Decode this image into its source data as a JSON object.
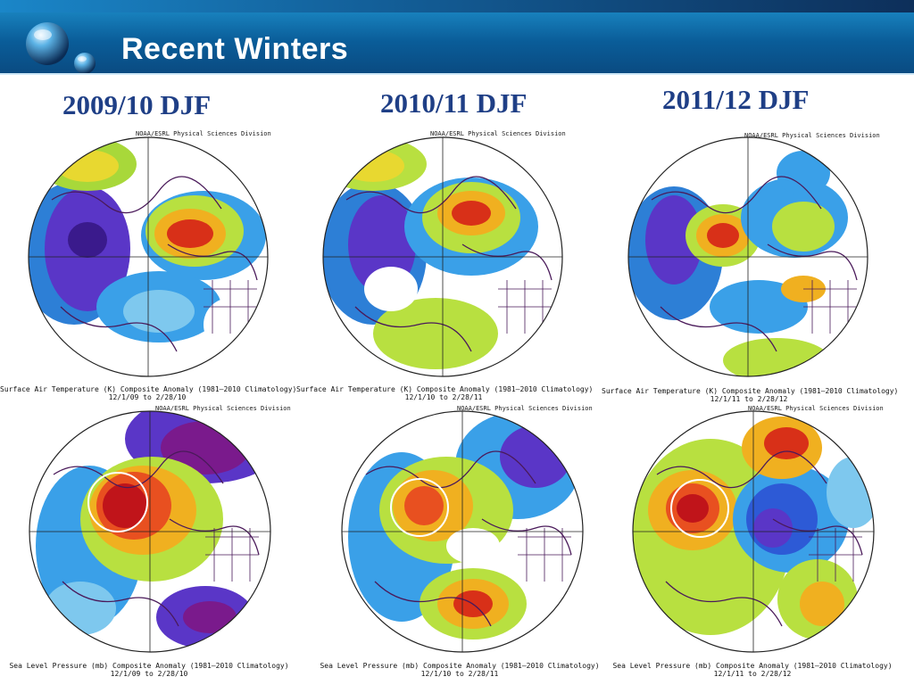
{
  "slide": {
    "title": "Recent Winters",
    "colors": {
      "title_text": "#ffffff",
      "header_blue": "#0a5d99",
      "column_title": "#1f3f86"
    }
  },
  "columns": [
    {
      "title": "2009/10 DJF"
    },
    {
      "title": "2010/11 DJF"
    },
    {
      "title": "2011/12 DJF"
    }
  ],
  "credit": "NOAA/ESRL Physical Sciences Division",
  "maps": {
    "temperature": [
      {
        "caption": "Surface Air Temperature (K) Composite Anomaly (1981–2010 Climatology)",
        "dates": "12/1/09  to 2/28/10"
      },
      {
        "caption": "Surface Air Temperature (K) Composite Anomaly (1981–2010 Climatology)",
        "dates": "12/1/10  to 2/28/11"
      },
      {
        "caption": "Surface Air Temperature (K) Composite Anomaly (1981–2010 Climatology)",
        "dates": "12/1/11  to 2/28/12"
      }
    ],
    "pressure": [
      {
        "caption": "Sea Level Pressure (mb) Composite Anomaly (1981–2010 Climatology)",
        "dates": "12/1/09  to 2/28/10"
      },
      {
        "caption": "Sea Level Pressure (mb) Composite Anomaly (1981–2010 Climatology)",
        "dates": "12/1/10  to 2/28/11"
      },
      {
        "caption": "Sea Level Pressure (mb) Composite Anomaly (1981–2010 Climatology)",
        "dates": "12/1/11  to 2/28/12"
      }
    ]
  }
}
